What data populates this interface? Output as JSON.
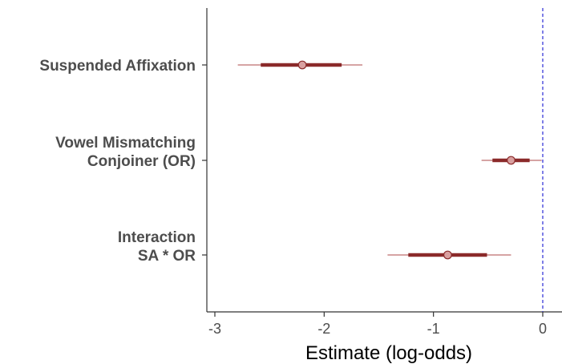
{
  "chart_data": {
    "type": "scatter",
    "subtype": "forest-plot",
    "title": "",
    "xlabel": "Estimate (log-odds)",
    "ylabel": "",
    "xlim": [
      -3.08,
      0.2
    ],
    "x_ticks": [
      -3,
      -2,
      -1,
      0
    ],
    "x_tick_labels": [
      "-3",
      "-2",
      "-1",
      "0"
    ],
    "reference_line": {
      "x": 0,
      "style": "dashed",
      "color": "#2b2bd6"
    },
    "grid": false,
    "legend": "none",
    "colors": {
      "interval": "#8b2a2a",
      "outer_interval": "#c98585",
      "point_fill": "#d9a0a0",
      "point_stroke": "#8b2a2a",
      "axis": "#333333",
      "label": "#4d4d4d"
    },
    "rows": [
      {
        "label_lines": [
          "Suspended Affixation"
        ],
        "estimate": -2.2,
        "inner_interval": [
          -2.58,
          -1.84
        ],
        "outer_interval": [
          -2.79,
          -1.65
        ]
      },
      {
        "label_lines": [
          "Vowel Mismatching",
          "Conjoiner (OR)"
        ],
        "estimate": -0.29,
        "inner_interval": [
          -0.46,
          -0.12
        ],
        "outer_interval": [
          -0.56,
          -0.01
        ]
      },
      {
        "label_lines": [
          "Interaction",
          "SA * OR"
        ],
        "estimate": -0.87,
        "inner_interval": [
          -1.23,
          -0.51
        ],
        "outer_interval": [
          -1.42,
          -0.29
        ]
      }
    ]
  }
}
